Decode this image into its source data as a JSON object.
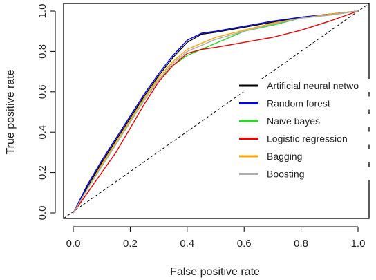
{
  "chart_data": {
    "type": "line",
    "xlabel": "False positive rate",
    "ylabel": "True positive rate",
    "xlim": [
      0,
      1
    ],
    "ylim": [
      0,
      1
    ],
    "x_ticks": [
      "0.0",
      "0.2",
      "0.4",
      "0.6",
      "0.8",
      "1.0"
    ],
    "y_ticks": [
      "0.0",
      "0.2",
      "0.4",
      "0.6",
      "0.8",
      "1.0"
    ],
    "grid": false,
    "legend_position": "center-right",
    "diagonal": {
      "style": "dashed",
      "color": "#000000"
    },
    "series": [
      {
        "name": "Artificial neural netwo",
        "color": "#000000",
        "points": [
          [
            0,
            0
          ],
          [
            0.05,
            0.13
          ],
          [
            0.1,
            0.25
          ],
          [
            0.15,
            0.36
          ],
          [
            0.2,
            0.47
          ],
          [
            0.25,
            0.58
          ],
          [
            0.3,
            0.68
          ],
          [
            0.35,
            0.77
          ],
          [
            0.4,
            0.845
          ],
          [
            0.45,
            0.885
          ],
          [
            0.5,
            0.895
          ],
          [
            0.6,
            0.92
          ],
          [
            0.7,
            0.945
          ],
          [
            0.8,
            0.97
          ],
          [
            0.9,
            0.985
          ],
          [
            1,
            1
          ]
        ]
      },
      {
        "name": "Random forest",
        "color": "#0000ee",
        "points": [
          [
            0,
            0
          ],
          [
            0.05,
            0.14
          ],
          [
            0.1,
            0.26
          ],
          [
            0.15,
            0.37
          ],
          [
            0.2,
            0.48
          ],
          [
            0.25,
            0.59
          ],
          [
            0.3,
            0.69
          ],
          [
            0.35,
            0.78
          ],
          [
            0.4,
            0.855
          ],
          [
            0.45,
            0.89
          ],
          [
            0.5,
            0.9
          ],
          [
            0.6,
            0.925
          ],
          [
            0.7,
            0.95
          ],
          [
            0.8,
            0.97
          ],
          [
            0.9,
            0.985
          ],
          [
            1,
            1
          ]
        ]
      },
      {
        "name": "Naive bayes",
        "color": "#22dd22",
        "points": [
          [
            0,
            0
          ],
          [
            0.05,
            0.12
          ],
          [
            0.1,
            0.23
          ],
          [
            0.15,
            0.34
          ],
          [
            0.2,
            0.45
          ],
          [
            0.25,
            0.56
          ],
          [
            0.3,
            0.66
          ],
          [
            0.35,
            0.73
          ],
          [
            0.4,
            0.78
          ],
          [
            0.45,
            0.81
          ],
          [
            0.5,
            0.84
          ],
          [
            0.55,
            0.87
          ],
          [
            0.6,
            0.9
          ],
          [
            0.7,
            0.93
          ],
          [
            0.8,
            0.965
          ],
          [
            0.9,
            0.98
          ],
          [
            1,
            1
          ]
        ]
      },
      {
        "name": "Logistic regression",
        "color": "#ee0000",
        "points": [
          [
            0,
            0
          ],
          [
            0.05,
            0.1
          ],
          [
            0.1,
            0.2
          ],
          [
            0.15,
            0.3
          ],
          [
            0.2,
            0.42
          ],
          [
            0.25,
            0.54
          ],
          [
            0.3,
            0.65
          ],
          [
            0.35,
            0.73
          ],
          [
            0.4,
            0.79
          ],
          [
            0.45,
            0.81
          ],
          [
            0.5,
            0.82
          ],
          [
            0.6,
            0.845
          ],
          [
            0.7,
            0.87
          ],
          [
            0.8,
            0.905
          ],
          [
            0.9,
            0.95
          ],
          [
            1,
            1
          ]
        ]
      },
      {
        "name": "Bagging",
        "color": "#ffa500",
        "points": [
          [
            0,
            0
          ],
          [
            0.05,
            0.12
          ],
          [
            0.1,
            0.24
          ],
          [
            0.15,
            0.35
          ],
          [
            0.2,
            0.46
          ],
          [
            0.25,
            0.57
          ],
          [
            0.3,
            0.67
          ],
          [
            0.35,
            0.75
          ],
          [
            0.4,
            0.81
          ],
          [
            0.45,
            0.84
          ],
          [
            0.5,
            0.87
          ],
          [
            0.6,
            0.905
          ],
          [
            0.7,
            0.94
          ],
          [
            0.8,
            0.965
          ],
          [
            0.9,
            0.985
          ],
          [
            1,
            1
          ]
        ]
      },
      {
        "name": "Boosting",
        "color": "#aaaaaa",
        "points": [
          [
            0,
            0
          ],
          [
            0.05,
            0.12
          ],
          [
            0.1,
            0.23
          ],
          [
            0.15,
            0.34
          ],
          [
            0.2,
            0.45
          ],
          [
            0.25,
            0.56
          ],
          [
            0.3,
            0.66
          ],
          [
            0.35,
            0.74
          ],
          [
            0.4,
            0.8
          ],
          [
            0.45,
            0.83
          ],
          [
            0.5,
            0.86
          ],
          [
            0.6,
            0.9
          ],
          [
            0.7,
            0.935
          ],
          [
            0.8,
            0.965
          ],
          [
            0.9,
            0.98
          ],
          [
            1,
            1
          ]
        ]
      }
    ]
  }
}
